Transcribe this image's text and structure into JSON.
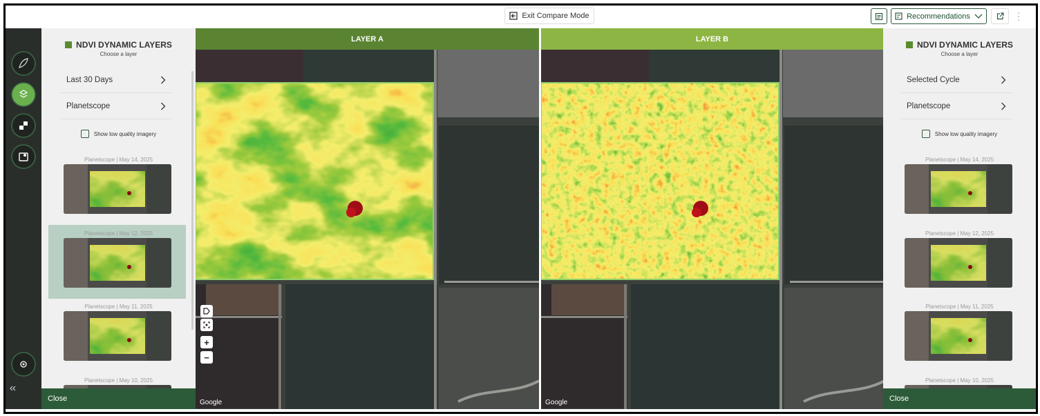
{
  "toolbar": {
    "exit_compare": "Exit Compare Mode",
    "recommendations": "Recommendations"
  },
  "panels": [
    {
      "title": "NDVI DYNAMIC LAYERS",
      "subtitle": "Choose a layer",
      "options": [
        "Last 30 Days",
        "Planetscope"
      ],
      "checkbox": "Show low quality imagery",
      "images": [
        "Planetscope | May 14, 2025",
        "Planetscope | May 12, 2025",
        "Planetscope | May 11, 2025",
        "Planetscope | May 10, 2025"
      ],
      "close": "Close"
    },
    {
      "title": "NDVI DYNAMIC LAYERS",
      "subtitle": "Choose a layer",
      "options": [
        "Selected Cycle",
        "Planetscope"
      ],
      "checkbox": "Show low quality imagery",
      "images": [
        "Planetscope | May 14, 2025",
        "Planetscope | May 12, 2025",
        "Planetscope | May 11, 2025",
        "Planetscope | May 10, 2025"
      ],
      "close": "Close"
    }
  ],
  "layers": [
    "LAYER A",
    "LAYER B"
  ],
  "map_controls": {
    "zoom_in": "+",
    "zoom_out": "−",
    "attribution": "Google"
  }
}
